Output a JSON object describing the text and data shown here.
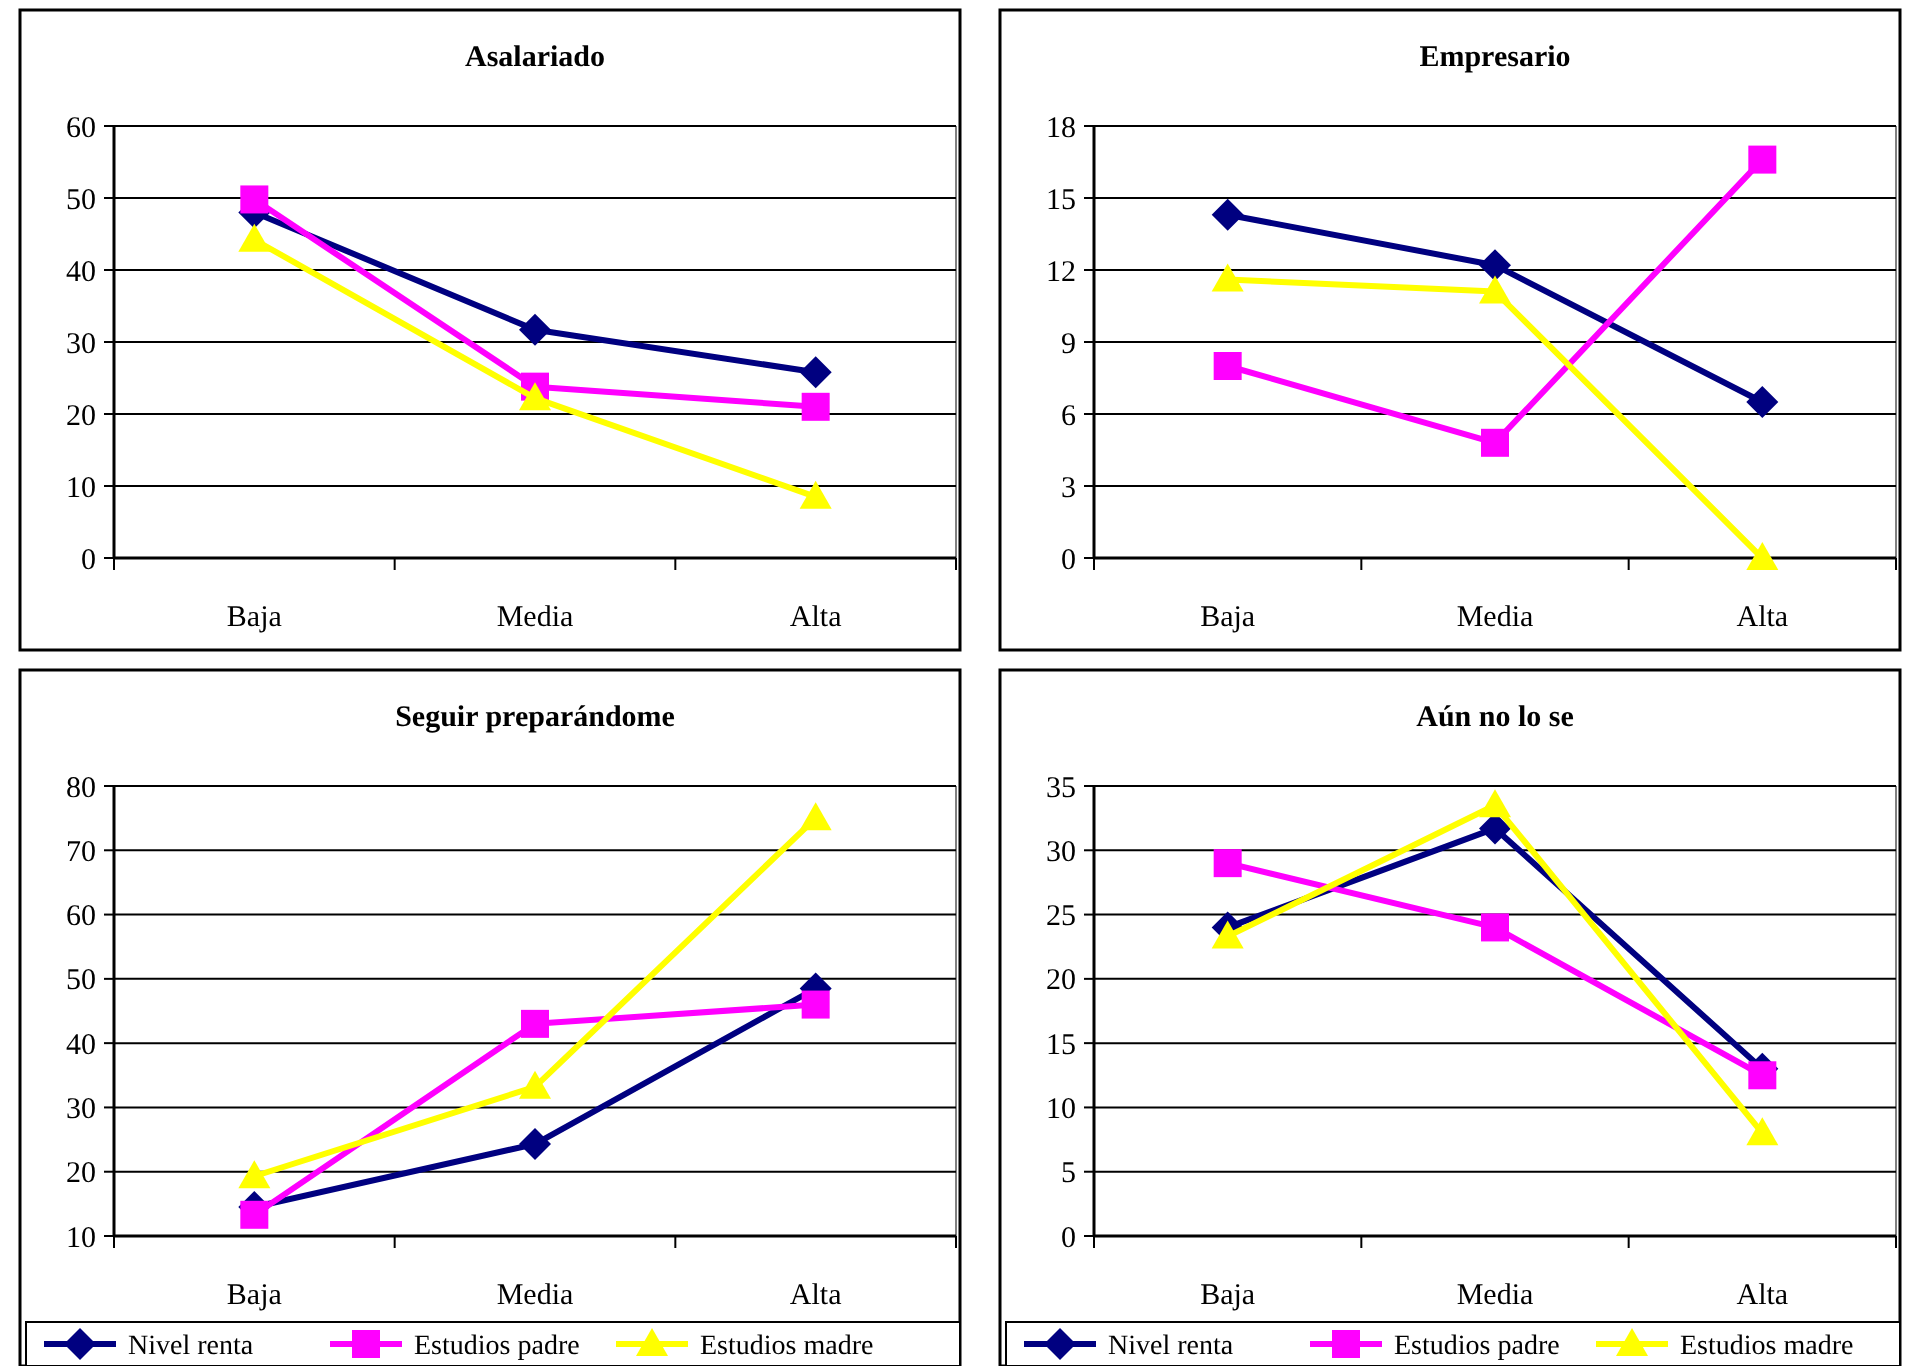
{
  "chart_data": [
    {
      "type": "line",
      "title": "Asalariado",
      "categories": [
        "Baja",
        "Media",
        "Alta"
      ],
      "ylim": [
        0,
        60
      ],
      "yticks": [
        0,
        10,
        20,
        30,
        40,
        50,
        60
      ],
      "grid": "y",
      "legend": false,
      "series": [
        {
          "color": "#000080",
          "marker": "diamond",
          "values": [
            48,
            31.7,
            25.8
          ]
        },
        {
          "color": "#ff00ff",
          "marker": "square",
          "values": [
            49.8,
            23.8,
            21
          ]
        },
        {
          "color": "#ffff00",
          "marker": "triangle",
          "values": [
            44.2,
            22.2,
            8.5
          ]
        }
      ]
    },
    {
      "type": "line",
      "title": "Empresario",
      "categories": [
        "Baja",
        "Media",
        "Alta"
      ],
      "ylim": [
        0,
        18
      ],
      "yticks": [
        0,
        3,
        6,
        9,
        12,
        15,
        18
      ],
      "grid": "y",
      "legend": false,
      "series": [
        {
          "color": "#000080",
          "marker": "diamond",
          "values": [
            14.3,
            12.2,
            6.5
          ]
        },
        {
          "color": "#ff00ff",
          "marker": "square",
          "values": [
            8,
            4.8,
            16.6
          ]
        },
        {
          "color": "#ffff00",
          "marker": "triangle",
          "values": [
            11.6,
            11.1,
            0
          ]
        }
      ]
    },
    {
      "type": "line",
      "title": "Seguir preparándome",
      "categories": [
        "Baja",
        "Media",
        "Alta"
      ],
      "ylim": [
        10,
        80
      ],
      "yticks": [
        10,
        20,
        30,
        40,
        50,
        60,
        70,
        80
      ],
      "grid": "y",
      "legend": "bottom",
      "series": [
        {
          "name": "Nivel renta",
          "color": "#000080",
          "marker": "diamond",
          "values": [
            14.5,
            24.3,
            48.5
          ]
        },
        {
          "name": "Estudios padre",
          "color": "#ff00ff",
          "marker": "square",
          "values": [
            13.3,
            43,
            46
          ]
        },
        {
          "name": "Estudios madre",
          "color": "#ffff00",
          "marker": "triangle",
          "values": [
            19.3,
            33.2,
            75
          ]
        }
      ]
    },
    {
      "type": "line",
      "title": "Aún no lo se",
      "categories": [
        "Baja",
        "Media",
        "Alta"
      ],
      "ylim": [
        0,
        35
      ],
      "yticks": [
        0,
        5,
        10,
        15,
        20,
        25,
        30,
        35
      ],
      "grid": "y",
      "legend": "bottom",
      "series": [
        {
          "name": "Nivel renta",
          "color": "#000080",
          "marker": "diamond",
          "values": [
            24,
            31.7,
            13
          ]
        },
        {
          "name": "Estudios padre",
          "color": "#ff00ff",
          "marker": "square",
          "values": [
            29,
            24,
            12.5
          ]
        },
        {
          "name": "Estudios madre",
          "color": "#ffff00",
          "marker": "triangle",
          "values": [
            23.3,
            33.5,
            8
          ]
        }
      ]
    }
  ]
}
